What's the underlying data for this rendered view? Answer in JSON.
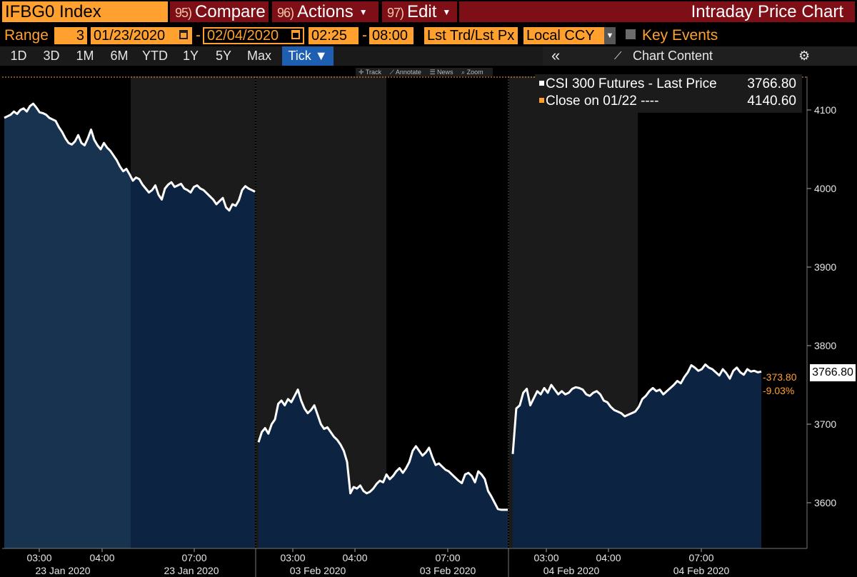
{
  "header": {
    "ticker": "IFBG0 Index",
    "compare_num": "95)",
    "compare_label": "Compare",
    "actions_num": "96)",
    "actions_label": "Actions",
    "edit_num": "97)",
    "edit_label": "Edit",
    "title": "Intraday Price Chart"
  },
  "range": {
    "label": "Range",
    "count": "3",
    "start_date": "01/23/2020",
    "end_date": "02/04/2020",
    "start_time": "02:25",
    "end_time": "08:00",
    "price_type": "Lst Trd/Lst Px",
    "currency": "Local CCY",
    "key_events_label": "Key Events"
  },
  "tabs": [
    "1D",
    "3D",
    "1M",
    "6M",
    "YTD",
    "1Y",
    "5Y",
    "Max"
  ],
  "tick_tab": "Tick ▼",
  "toolbar": {
    "chart_content": "Chart Content",
    "collapse_icon": "«",
    "settings_icon": "⚙"
  },
  "mini_tools": [
    "Track",
    "Annotate",
    "News",
    "Zoom"
  ],
  "legend": {
    "series_label": "CSI 300 Futures - Last Price",
    "series_value": "3766.80",
    "close_label": "Close on 01/22 ----",
    "close_value": "4140.60"
  },
  "last_price_box": "3766.80",
  "change_abs": "-373.80",
  "change_pct": "-9.03%",
  "colors": {
    "accent": "#ffa02f",
    "header_red": "#7f0f17",
    "fill": "#132c4d",
    "active_tab": "#1f5fb2"
  },
  "chart_data": {
    "type": "area",
    "title": "",
    "series_name": "CSI 300 Futures - Last Price",
    "ylim": [
      3545,
      4140
    ],
    "y_ticks": [
      3600,
      3700,
      3800,
      3900,
      4000,
      4100
    ],
    "reference_line": {
      "label": "Close on 01/22",
      "value": 4140.6
    },
    "sessions": [
      {
        "date": "23 Jan 2020",
        "time_ticks": [
          "03:00",
          "04:00",
          "07:00"
        ],
        "points": [
          4090,
          4092,
          4094,
          4098,
          4095,
          4100,
          4102,
          4098,
          4105,
          4108,
          4103,
          4097,
          4096,
          4094,
          4090,
          4088,
          4086,
          4078,
          4072,
          4064,
          4058,
          4056,
          4060,
          4068,
          4058,
          4055,
          4064,
          4075,
          4062,
          4055,
          4050,
          4058,
          4052,
          4048,
          4042,
          4036,
          4028,
          4022,
          4025,
          4018,
          4010,
          4014,
          4012,
          4005,
          4000,
          3995,
          3998,
          4004,
          3992,
          3986,
          4000,
          4005,
          4008,
          4002,
          4004,
          4006,
          4000,
          3998,
          3995,
          4002,
          4004,
          4000,
          3998,
          3994,
          3990,
          3986,
          3980,
          3984,
          3988,
          3976,
          3972,
          3980,
          3978,
          3985,
          3998,
          4003,
          4000,
          3998,
          3996
        ]
      },
      {
        "date": "03 Feb 2020",
        "time_ticks": [
          "03:00",
          "04:00",
          "07:00"
        ],
        "points": [
          3677,
          3690,
          3695,
          3688,
          3700,
          3706,
          3726,
          3730,
          3724,
          3732,
          3728,
          3736,
          3744,
          3730,
          3720,
          3714,
          3718,
          3724,
          3712,
          3700,
          3694,
          3696,
          3690,
          3684,
          3680,
          3674,
          3666,
          3652,
          3612,
          3620,
          3618,
          3622,
          3615,
          3612,
          3614,
          3618,
          3624,
          3628,
          3626,
          3636,
          3630,
          3634,
          3640,
          3644,
          3638,
          3644,
          3652,
          3666,
          3672,
          3666,
          3660,
          3664,
          3670,
          3658,
          3648,
          3650,
          3646,
          3642,
          3640,
          3636,
          3632,
          3628,
          3625,
          3636,
          3638,
          3634,
          3626,
          3640,
          3636,
          3630,
          3615,
          3608,
          3600,
          3592,
          3591,
          3591,
          3591
        ]
      },
      {
        "date": "04 Feb 2020",
        "time_ticks": [
          "03:00",
          "04:00",
          "07:00"
        ],
        "points": [
          3662,
          3720,
          3724,
          3740,
          3745,
          3724,
          3733,
          3742,
          3738,
          3746,
          3740,
          3750,
          3744,
          3738,
          3742,
          3738,
          3740,
          3745,
          3747,
          3746,
          3744,
          3738,
          3736,
          3740,
          3742,
          3738,
          3730,
          3728,
          3722,
          3718,
          3716,
          3714,
          3710,
          3712,
          3714,
          3716,
          3722,
          3732,
          3736,
          3742,
          3746,
          3742,
          3744,
          3738,
          3742,
          3746,
          3750,
          3755,
          3752,
          3760,
          3766,
          3775,
          3772,
          3768,
          3770,
          3776,
          3772,
          3770,
          3766,
          3762,
          3770,
          3765,
          3758,
          3768,
          3772,
          3766,
          3763,
          3770,
          3767,
          3768,
          3766,
          3767
        ]
      }
    ]
  }
}
